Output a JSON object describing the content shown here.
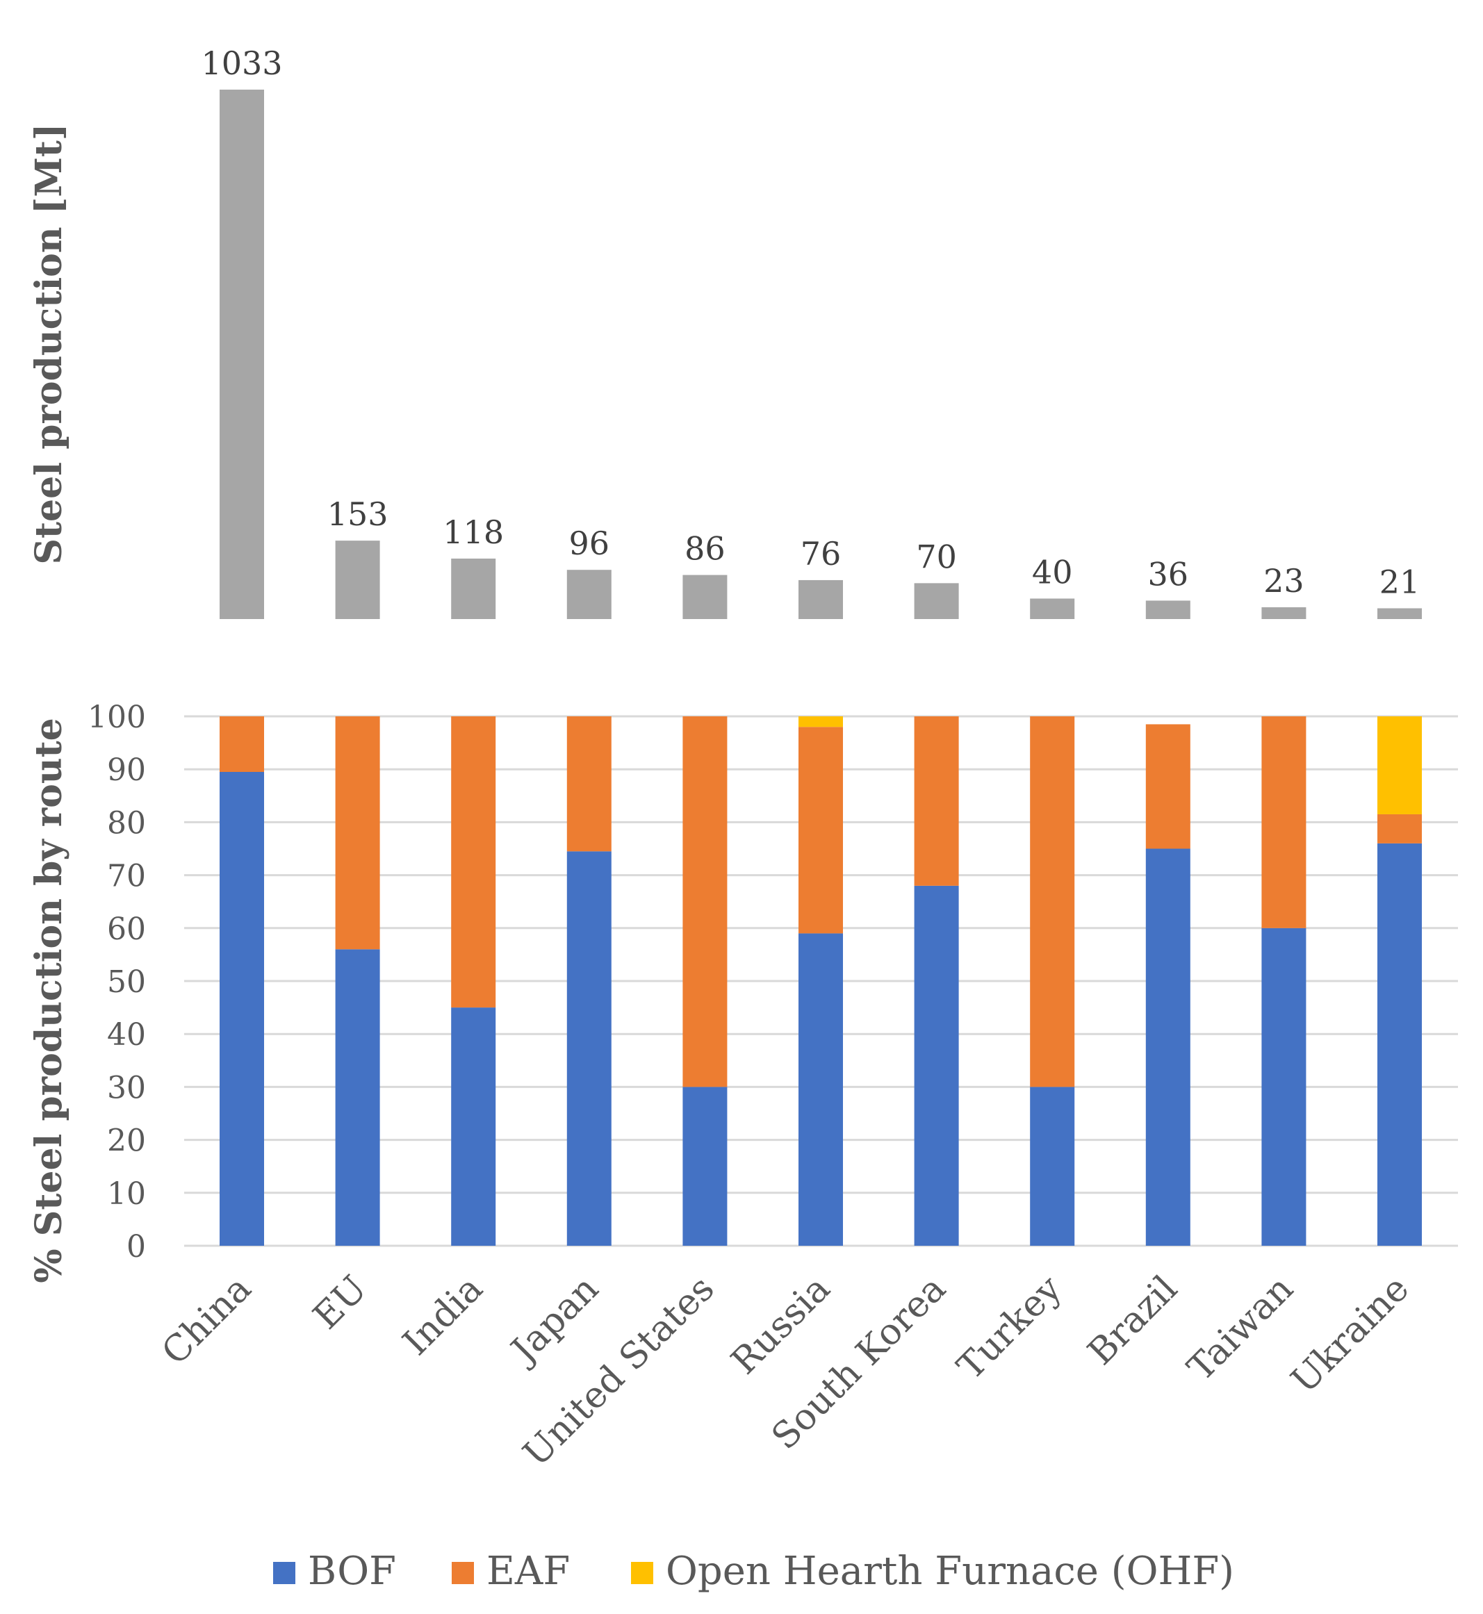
{
  "chart_data": [
    {
      "type": "bar",
      "ylabel": "Steel production [Mt]",
      "categories": [
        "China",
        "EU",
        "India",
        "Japan",
        "United States",
        "Russia",
        "South Korea",
        "Turkey",
        "Brazil",
        "Taiwan",
        "Ukraine"
      ],
      "values": [
        1033,
        153,
        118,
        96,
        86,
        76,
        70,
        40,
        36,
        23,
        21
      ],
      "data_labels": [
        "1033",
        "153",
        "118",
        "96",
        "86",
        "76",
        "70",
        "40",
        "36",
        "23",
        "21"
      ],
      "color": "#a6a6a6"
    },
    {
      "type": "bar",
      "stacked": true,
      "ylabel": "% Steel production by route",
      "categories": [
        "China",
        "EU",
        "India",
        "Japan",
        "United States",
        "Russia",
        "South Korea",
        "Turkey",
        "Brazil",
        "Taiwan",
        "Ukraine"
      ],
      "ylim": [
        0,
        100
      ],
      "yticks": [
        "0",
        "10",
        "20",
        "30",
        "40",
        "50",
        "60",
        "70",
        "80",
        "90",
        "100"
      ],
      "grid": true,
      "legend_position": "bottom",
      "series": [
        {
          "name": "BOF",
          "color": "#4472c4",
          "values": [
            89.5,
            56,
            45,
            74.5,
            30,
            59,
            68,
            30,
            75,
            60,
            76
          ]
        },
        {
          "name": "EAF",
          "color": "#ed7d31",
          "values": [
            10.5,
            44,
            55,
            25.5,
            70,
            39,
            32,
            70,
            23.5,
            40,
            5.5
          ]
        },
        {
          "name": "Open Hearth Furnace (OHF)",
          "color": "#ffc000",
          "values": [
            0,
            0,
            0,
            0,
            0,
            2,
            0,
            0,
            0,
            0,
            18.5
          ]
        }
      ]
    }
  ]
}
